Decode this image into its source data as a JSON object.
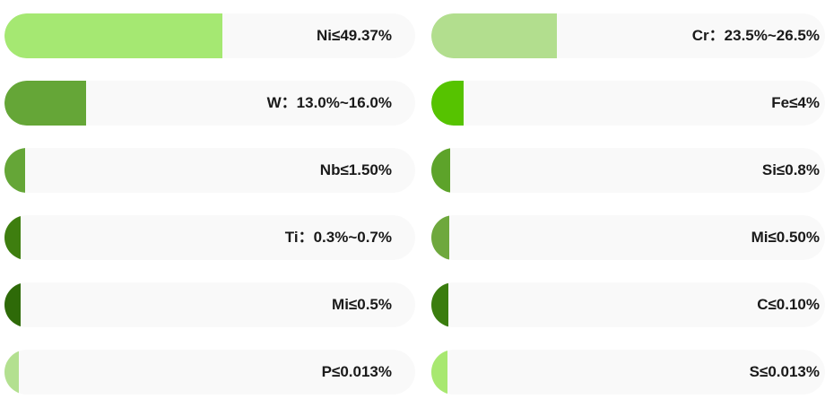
{
  "left": [
    {
      "label": "Ni≤49.37%",
      "color": "#a5e872",
      "level": 0.53
    },
    {
      "label": "W：13.0%~16.0%",
      "color": "#65a637",
      "level": 0.198
    },
    {
      "label": "Nb≤1.50%",
      "color": "#65a637",
      "level": 0.05
    },
    {
      "label": "Ti：0.3%~0.7%",
      "color": "#3e7e0f",
      "level": 0.04
    },
    {
      "label": "Mi≤0.5%",
      "color": "#2e6a08",
      "level": 0.04
    },
    {
      "label": "P≤0.013%",
      "color": "#b3e090",
      "level": 0.035
    }
  ],
  "right": [
    {
      "label": "Cr：23.5%~26.5%",
      "color": "#b2de8e",
      "level": 0.318
    },
    {
      "label": "Fe≤4%",
      "color": "#56c300",
      "level": 0.083
    },
    {
      "label": "Si≤0.8%",
      "color": "#5da32a",
      "level": 0.048
    },
    {
      "label": "Mi≤0.50%",
      "color": "#6ea83d",
      "level": 0.046
    },
    {
      "label": "C≤0.10%",
      "color": "#3a7d0e",
      "level": 0.043
    },
    {
      "label": "S≤0.013%",
      "color": "#a8e870",
      "level": 0.04
    }
  ]
}
